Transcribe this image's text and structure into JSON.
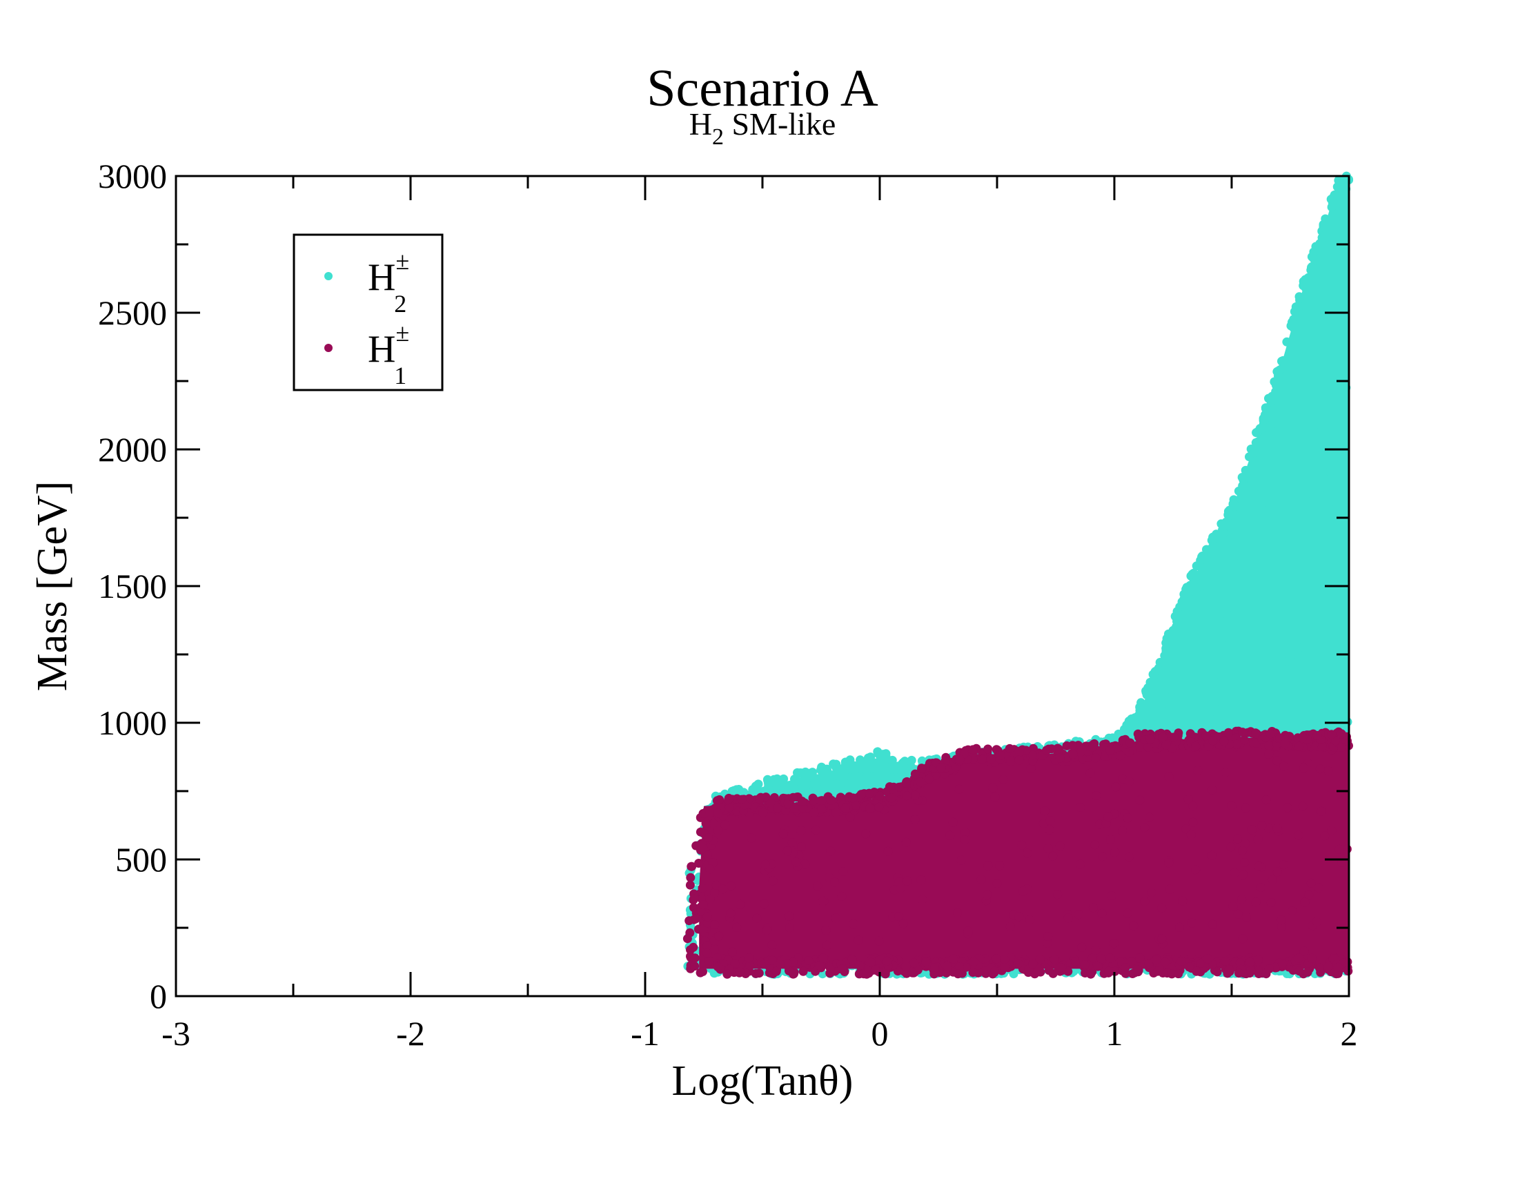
{
  "chart_data": {
    "type": "scatter",
    "title": "Scenario A",
    "subtitle": {
      "main": "H",
      "sub": "2",
      "rest": " SM-like"
    },
    "xlabel": "Log(Tanθ)",
    "ylabel": "Mass [GeV]",
    "xlim": [
      -3,
      2
    ],
    "ylim": [
      0,
      3000
    ],
    "xticks": [
      "-3",
      "-2",
      "-1",
      "0",
      "1",
      "2"
    ],
    "xtick_values": [
      -3,
      -2,
      -1,
      0,
      1,
      2
    ],
    "yticks": [
      "0",
      "500",
      "1000",
      "1500",
      "2000",
      "2500",
      "3000"
    ],
    "ytick_values": [
      0,
      500,
      1000,
      1500,
      2000,
      2500,
      3000
    ],
    "legend_position": "top-left",
    "series": [
      {
        "name": "H± 2",
        "label": {
          "main": "H",
          "sup": "±",
          "sub": "2"
        },
        "color": "#40E0D0",
        "x_range": [
          -0.82,
          2.0
        ],
        "lower_mass": 80,
        "upper_envelope": [
          [
            -0.82,
            420
          ],
          [
            -0.75,
            720
          ],
          [
            -0.6,
            760
          ],
          [
            -0.5,
            790
          ],
          [
            -0.3,
            830
          ],
          [
            -0.1,
            870
          ],
          [
            0,
            900
          ],
          [
            0.1,
            860
          ],
          [
            0.3,
            880
          ],
          [
            0.5,
            900
          ],
          [
            0.8,
            930
          ],
          [
            1.0,
            950
          ],
          [
            1.1,
            1050
          ],
          [
            1.2,
            1250
          ],
          [
            1.3,
            1500
          ],
          [
            1.4,
            1650
          ],
          [
            1.5,
            1800
          ],
          [
            1.6,
            2050
          ],
          [
            1.7,
            2300
          ],
          [
            1.8,
            2600
          ],
          [
            1.9,
            2850
          ],
          [
            1.95,
            3000
          ],
          [
            2.0,
            3000
          ]
        ]
      },
      {
        "name": "H± 1",
        "label": {
          "main": "H",
          "sup": "±",
          "sub": "1"
        },
        "color": "#990B56",
        "x_range": [
          -0.82,
          2.0
        ],
        "lower_mass": 80,
        "upper_envelope": [
          [
            -0.82,
            420
          ],
          [
            -0.75,
            720
          ],
          [
            -0.5,
            730
          ],
          [
            -0.2,
            730
          ],
          [
            0,
            750
          ],
          [
            0.1,
            790
          ],
          [
            0.2,
            850
          ],
          [
            0.4,
            910
          ],
          [
            0.7,
            910
          ],
          [
            1.0,
            930
          ],
          [
            1.1,
            960
          ],
          [
            1.5,
            970
          ],
          [
            2.0,
            970
          ]
        ]
      }
    ]
  }
}
